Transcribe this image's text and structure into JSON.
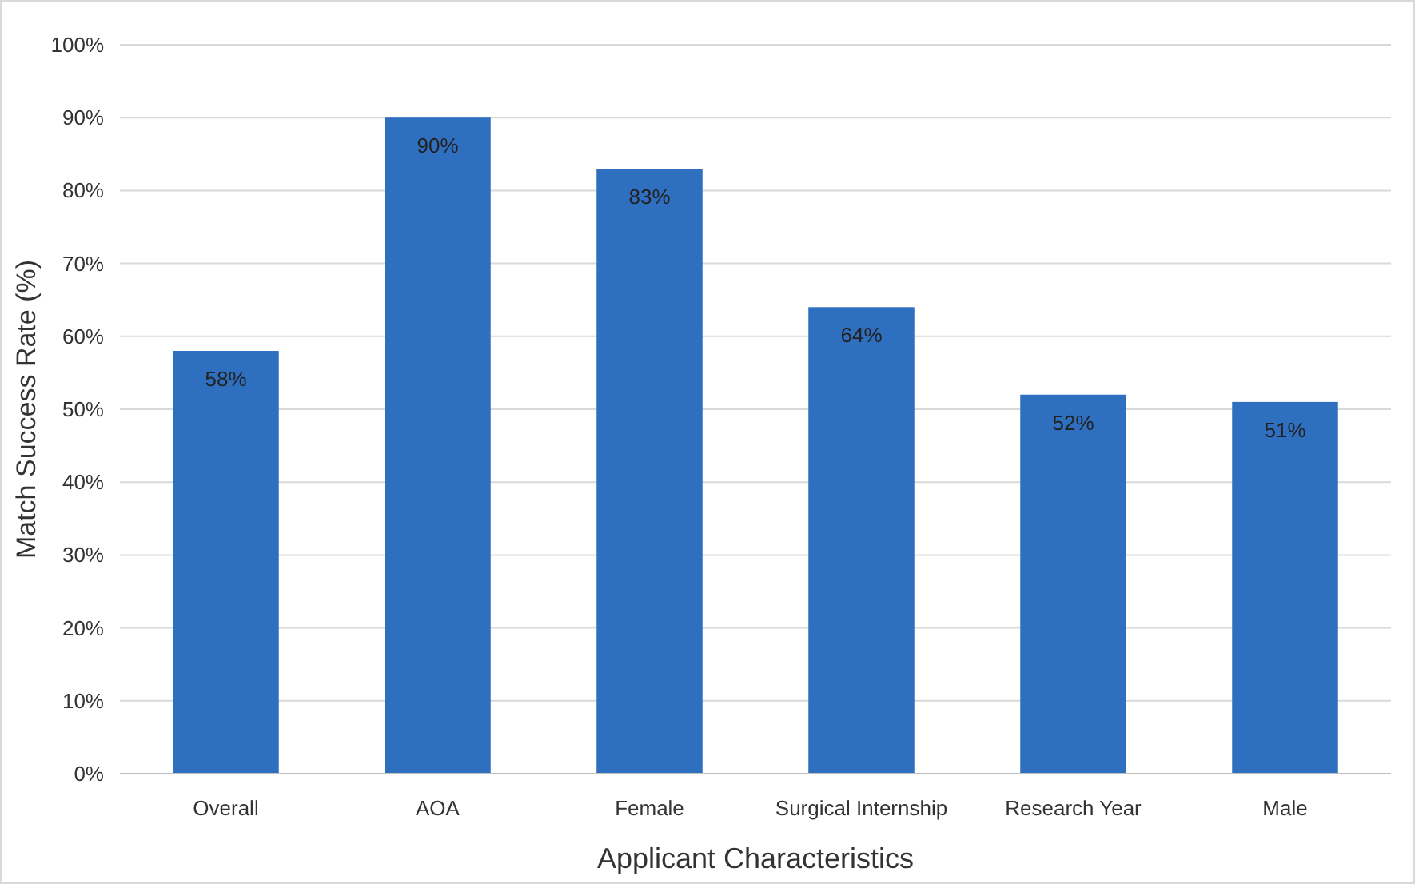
{
  "chart_data": {
    "type": "bar",
    "xlabel": "Applicant Characteristics",
    "ylabel": "Match Success Rate (%)",
    "categories": [
      "Overall",
      "AOA",
      "Female",
      "Surgical Internship",
      "Research Year",
      "Male"
    ],
    "values": [
      58,
      90,
      83,
      64,
      52,
      51
    ],
    "value_labels": [
      "58%",
      "90%",
      "83%",
      "64%",
      "52%",
      "51%"
    ],
    "color": "#2f6fbf",
    "ylim": [
      0,
      100
    ],
    "yticks": [
      {
        "value": 0,
        "label": "0%"
      },
      {
        "value": 10,
        "label": "10%"
      },
      {
        "value": 20,
        "label": "20%"
      },
      {
        "value": 30,
        "label": "30%"
      },
      {
        "value": 40,
        "label": "40%"
      },
      {
        "value": 50,
        "label": "50%"
      },
      {
        "value": 60,
        "label": "60%"
      },
      {
        "value": 70,
        "label": "70%"
      },
      {
        "value": 80,
        "label": "80%"
      },
      {
        "value": 90,
        "label": "90%"
      },
      {
        "value": 100,
        "label": "100%"
      }
    ],
    "grid": "y"
  }
}
